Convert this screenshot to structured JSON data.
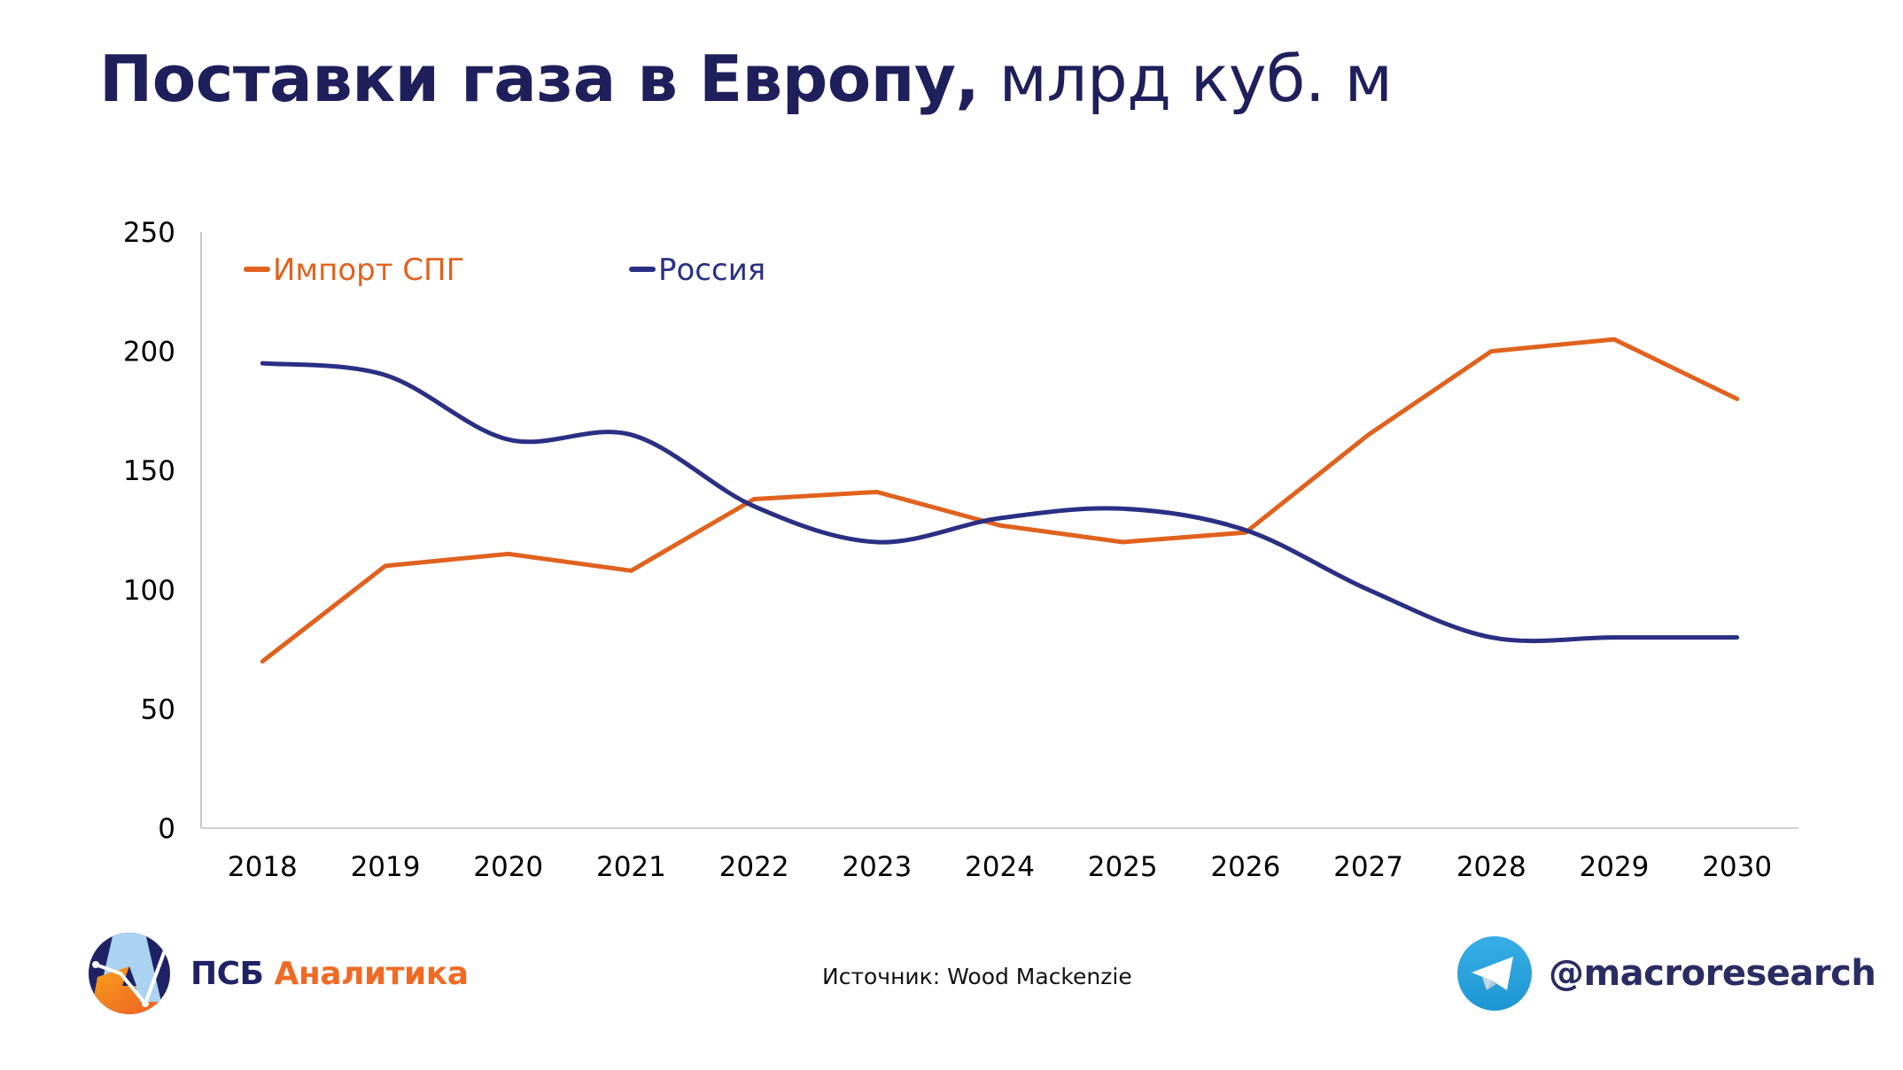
{
  "title": {
    "bold": "Поставки газа в Европу,",
    "unit": " млрд куб. м"
  },
  "chart_data": {
    "type": "line",
    "title": "Поставки газа в Европу, млрд куб. м",
    "xlabel": "",
    "ylabel": "",
    "categories": [
      "2018",
      "2019",
      "2020",
      "2021",
      "2022",
      "2023",
      "2024",
      "2025",
      "2026",
      "2027",
      "2028",
      "2029",
      "2030"
    ],
    "ylim": [
      0,
      250
    ],
    "yticks": [
      0,
      50,
      100,
      150,
      200,
      250
    ],
    "grid": false,
    "legend_position": "top-left",
    "series": [
      {
        "name": "Импорт СПГ",
        "color": "#e0621e",
        "smooth": false,
        "values": [
          70,
          110,
          115,
          108,
          138,
          141,
          127,
          120,
          124,
          165,
          200,
          205,
          180
        ]
      },
      {
        "name": "Россия",
        "color": "#2b2f83",
        "smooth": true,
        "values": [
          195,
          190,
          163,
          165,
          135,
          120,
          130,
          134,
          125,
          100,
          80,
          80,
          80
        ]
      }
    ]
  },
  "footer": {
    "source": "Источник: Wood Mackenzie",
    "brand_psb": "ПСБ",
    "brand_analytics": "Аналитика",
    "telegram_handle": "@macroresearch"
  },
  "icons": {
    "brand_logo": "psb-analytics-logo-icon",
    "telegram": "telegram-icon"
  }
}
